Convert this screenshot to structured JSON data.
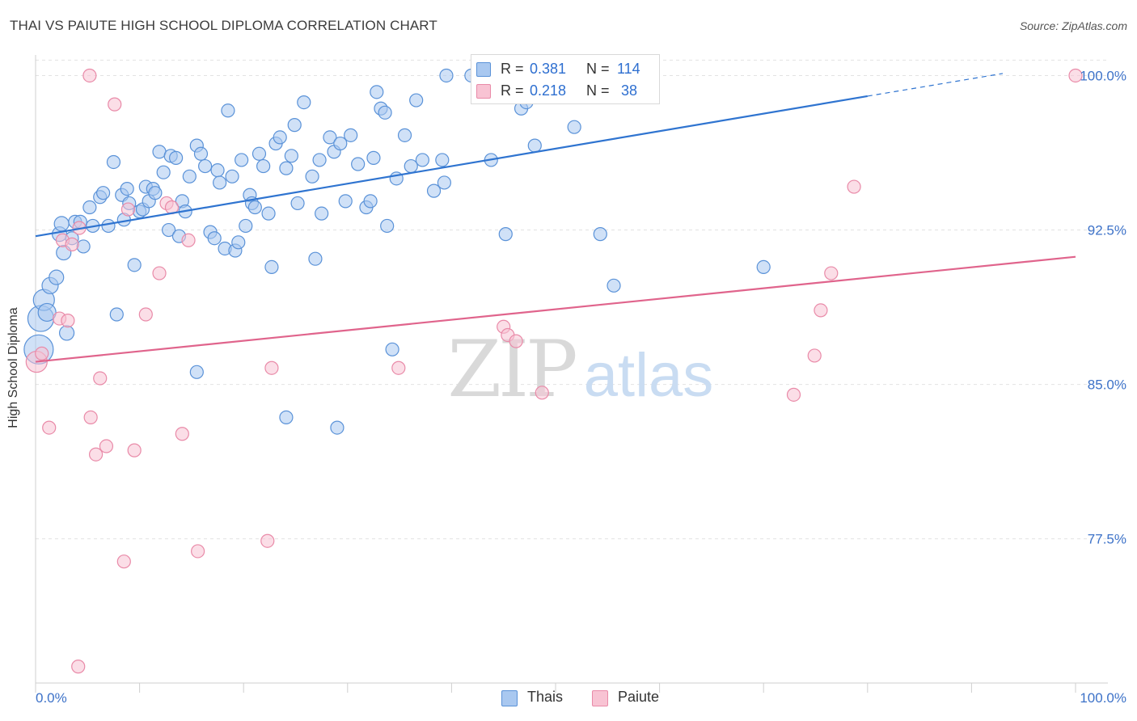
{
  "title": "THAI VS PAIUTE HIGH SCHOOL DIPLOMA CORRELATION CHART",
  "source": "Source: ZipAtlas.com",
  "colors": {
    "thais_fill": "#a9c8f0",
    "thais_stroke": "#5a92d8",
    "thais_line": "#2f74d0",
    "paiute_fill": "#f8c3d3",
    "paiute_stroke": "#e98aa8",
    "paiute_line": "#e0648c",
    "tick_label": "#3d72c8",
    "grid": "#e2e2e2"
  },
  "legend": {
    "rows": [
      {
        "r_label": "R = ",
        "r_value": "0.381",
        "n_label": "N = ",
        "n_value": "114"
      },
      {
        "r_label": "R = ",
        "r_value": "0.218",
        "n_label": "N = ",
        "n_value": " 38"
      }
    ]
  },
  "bottom_legend": [
    "Thais",
    "Paiute"
  ],
  "chart_data": {
    "type": "scatter",
    "title": "THAI VS PAIUTE HIGH SCHOOL DIPLOMA CORRELATION CHART",
    "ylabel": "High School Diploma",
    "xlabel": "",
    "xlim": [
      0,
      100
    ],
    "ylim": [
      70.5,
      101
    ],
    "x_tick_labels": [
      "0.0%",
      "100.0%"
    ],
    "y_ticks": [
      100.0,
      92.5,
      85.0,
      77.5
    ],
    "y_tick_labels": [
      "100.0%",
      "92.5%",
      "85.0%",
      "77.5%"
    ],
    "grid": true,
    "legend_position": "top-center",
    "watermark": "ZIPatlas",
    "series": [
      {
        "name": "Thais",
        "r": 0.381,
        "n": 114,
        "trend": {
          "x0": 0,
          "y0": 92.2,
          "x1": 80,
          "y1": 99.0,
          "dashed_to_x": 93,
          "dashed_to_y": 100.1
        },
        "points": [
          [
            0.3,
            86.7,
            18
          ],
          [
            0.5,
            88.2,
            16
          ],
          [
            0.8,
            89.1,
            13
          ],
          [
            1.1,
            88.5,
            11
          ],
          [
            1.4,
            89.8,
            10
          ],
          [
            2,
            90.2,
            9
          ],
          [
            2.3,
            92.3,
            9
          ],
          [
            2.5,
            92.8,
            9
          ],
          [
            2.7,
            91.4,
            9
          ],
          [
            3,
            87.5,
            9
          ],
          [
            3.5,
            92.1,
            8
          ],
          [
            3.8,
            92.9,
            8
          ],
          [
            4.3,
            92.9,
            8
          ],
          [
            4.6,
            91.7,
            8
          ],
          [
            5.2,
            93.6,
            8
          ],
          [
            5.5,
            92.7,
            8
          ],
          [
            6.2,
            94.1,
            8
          ],
          [
            6.5,
            94.3,
            8
          ],
          [
            7,
            92.7,
            8
          ],
          [
            7.5,
            95.8,
            8
          ],
          [
            7.8,
            88.4,
            8
          ],
          [
            8.3,
            94.2,
            8
          ],
          [
            8.5,
            93.0,
            8
          ],
          [
            8.8,
            94.5,
            8
          ],
          [
            9,
            93.8,
            8
          ],
          [
            9.5,
            90.8,
            8
          ],
          [
            10,
            93.4,
            8
          ],
          [
            10.3,
            93.5,
            8
          ],
          [
            10.6,
            94.6,
            8
          ],
          [
            10.9,
            93.9,
            8
          ],
          [
            11.3,
            94.5,
            8
          ],
          [
            11.5,
            94.3,
            8
          ],
          [
            11.9,
            96.3,
            8
          ],
          [
            12.3,
            95.3,
            8
          ],
          [
            12.8,
            92.5,
            8
          ],
          [
            13,
            96.1,
            8
          ],
          [
            13.5,
            96.0,
            8
          ],
          [
            13.8,
            92.2,
            8
          ],
          [
            14.1,
            93.9,
            8
          ],
          [
            14.4,
            93.4,
            8
          ],
          [
            14.8,
            95.1,
            8
          ],
          [
            15.5,
            96.6,
            8
          ],
          [
            15.9,
            96.2,
            8
          ],
          [
            16.3,
            95.6,
            8
          ],
          [
            16.8,
            92.4,
            8
          ],
          [
            17.2,
            92.1,
            8
          ],
          [
            17.5,
            95.4,
            8
          ],
          [
            17.7,
            94.8,
            8
          ],
          [
            18.2,
            91.6,
            8
          ],
          [
            18.5,
            98.3,
            8
          ],
          [
            18.9,
            95.1,
            8
          ],
          [
            19.2,
            91.5,
            8
          ],
          [
            19.5,
            91.9,
            8
          ],
          [
            19.8,
            95.9,
            8
          ],
          [
            20.2,
            92.7,
            8
          ],
          [
            20.6,
            94.2,
            8
          ],
          [
            20.8,
            93.8,
            8
          ],
          [
            21.1,
            93.6,
            8
          ],
          [
            21.5,
            96.2,
            8
          ],
          [
            21.9,
            95.6,
            8
          ],
          [
            22.4,
            93.3,
            8
          ],
          [
            22.7,
            90.7,
            8
          ],
          [
            23.1,
            96.7,
            8
          ],
          [
            23.5,
            97.0,
            8
          ],
          [
            24.1,
            95.5,
            8
          ],
          [
            24.6,
            96.1,
            8
          ],
          [
            24.9,
            97.6,
            8
          ],
          [
            25.2,
            93.8,
            8
          ],
          [
            25.8,
            98.7,
            8
          ],
          [
            26.6,
            95.1,
            8
          ],
          [
            26.9,
            91.1,
            8
          ],
          [
            27.3,
            95.9,
            8
          ],
          [
            27.5,
            93.3,
            8
          ],
          [
            28.3,
            97.0,
            8
          ],
          [
            28.7,
            96.3,
            8
          ],
          [
            29.3,
            96.7,
            8
          ],
          [
            29.8,
            93.9,
            8
          ],
          [
            30.3,
            97.1,
            8
          ],
          [
            31,
            95.7,
            8
          ],
          [
            31.8,
            93.6,
            8
          ],
          [
            32.2,
            93.9,
            8
          ],
          [
            32.5,
            96.0,
            8
          ],
          [
            32.8,
            99.2,
            8
          ],
          [
            33.2,
            98.4,
            8
          ],
          [
            33.6,
            98.2,
            8
          ],
          [
            33.8,
            92.7,
            8
          ],
          [
            34.3,
            86.7,
            8
          ],
          [
            34.7,
            95.0,
            8
          ],
          [
            35.5,
            97.1,
            8
          ],
          [
            36.1,
            95.6,
            8
          ],
          [
            36.6,
            98.8,
            8
          ],
          [
            37.2,
            95.9,
            8
          ],
          [
            38.3,
            94.4,
            8
          ],
          [
            39.1,
            95.9,
            8
          ],
          [
            39.3,
            94.8,
            8
          ],
          [
            39.5,
            100.0,
            8
          ],
          [
            41.9,
            100.0,
            8
          ],
          [
            43.1,
            99.0,
            8
          ],
          [
            43.8,
            95.9,
            8
          ],
          [
            45.2,
            92.3,
            8
          ],
          [
            46.7,
            98.4,
            8
          ],
          [
            47.2,
            98.7,
            8
          ],
          [
            48,
            96.6,
            8
          ],
          [
            51.8,
            97.5,
            8
          ],
          [
            54.3,
            92.3,
            8
          ],
          [
            55.6,
            89.8,
            8
          ],
          [
            70,
            90.7,
            8
          ],
          [
            15.5,
            85.6,
            8
          ],
          [
            24.1,
            83.4,
            8
          ],
          [
            29,
            82.9,
            8
          ]
        ]
      },
      {
        "name": "Paiute",
        "r": 0.218,
        "n": 38,
        "trend": {
          "x0": 0,
          "y0": 86.1,
          "x1": 100,
          "y1": 91.2
        },
        "points": [
          [
            0.1,
            86.1,
            13
          ],
          [
            0.6,
            86.5,
            8
          ],
          [
            1.3,
            82.9,
            8
          ],
          [
            2.3,
            88.2,
            8
          ],
          [
            2.6,
            92.0,
            8
          ],
          [
            3.1,
            88.1,
            8
          ],
          [
            3.5,
            91.8,
            8
          ],
          [
            4.1,
            71.3,
            8
          ],
          [
            4.2,
            92.6,
            8
          ],
          [
            5.2,
            100.0,
            8
          ],
          [
            5.3,
            83.4,
            8
          ],
          [
            5.8,
            81.6,
            8
          ],
          [
            6.2,
            85.3,
            8
          ],
          [
            6.8,
            82.0,
            8
          ],
          [
            7.6,
            98.6,
            8
          ],
          [
            8.5,
            76.4,
            8
          ],
          [
            8.9,
            93.5,
            8
          ],
          [
            9.5,
            81.8,
            8
          ],
          [
            10.6,
            88.4,
            8
          ],
          [
            11.9,
            90.4,
            8
          ],
          [
            12.6,
            93.8,
            8
          ],
          [
            13.1,
            93.6,
            8
          ],
          [
            14.1,
            82.6,
            8
          ],
          [
            14.7,
            92.0,
            8
          ],
          [
            15.6,
            76.9,
            8
          ],
          [
            22.3,
            77.4,
            8
          ],
          [
            22.7,
            85.8,
            8
          ],
          [
            34.9,
            85.8,
            8
          ],
          [
            45,
            87.8,
            8
          ],
          [
            45.4,
            87.4,
            8
          ],
          [
            46.2,
            87.1,
            8
          ],
          [
            48.7,
            84.6,
            8
          ],
          [
            72.9,
            84.5,
            8
          ],
          [
            74.9,
            86.4,
            8
          ],
          [
            75.5,
            88.6,
            8
          ],
          [
            76.5,
            90.4,
            8
          ],
          [
            78.7,
            94.6,
            8
          ],
          [
            100,
            100.0,
            8
          ]
        ]
      }
    ]
  }
}
